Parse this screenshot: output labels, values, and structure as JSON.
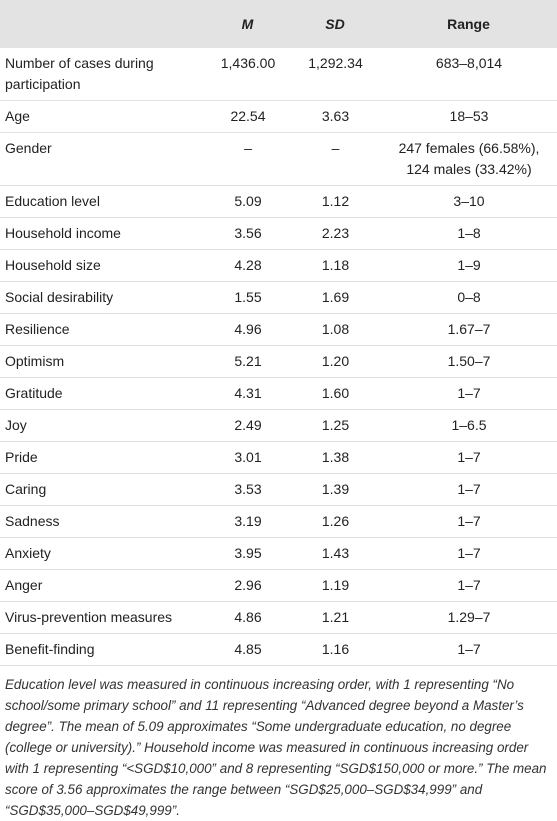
{
  "table": {
    "header": [
      "",
      "M",
      "SD",
      "Range"
    ],
    "rows": [
      [
        "Number of cases during participation",
        "1,436.00",
        "1,292.34",
        "683–8,014"
      ],
      [
        "Age",
        "22.54",
        "3.63",
        "18–53"
      ],
      [
        "Gender",
        "–",
        "–",
        "247 females (66.58%), 124 males (33.42%)"
      ],
      [
        "Education level",
        "5.09",
        "1.12",
        "3–10"
      ],
      [
        "Household income",
        "3.56",
        "2.23",
        "1–8"
      ],
      [
        "Household size",
        "4.28",
        "1.18",
        "1–9"
      ],
      [
        "Social desirability",
        "1.55",
        "1.69",
        "0–8"
      ],
      [
        "Resilience",
        "4.96",
        "1.08",
        "1.67–7"
      ],
      [
        "Optimism",
        "5.21",
        "1.20",
        "1.50–7"
      ],
      [
        "Gratitude",
        "4.31",
        "1.60",
        "1–7"
      ],
      [
        "Joy",
        "2.49",
        "1.25",
        "1–6.5"
      ],
      [
        "Pride",
        "3.01",
        "1.38",
        "1–7"
      ],
      [
        "Caring",
        "3.53",
        "1.39",
        "1–7"
      ],
      [
        "Sadness",
        "3.19",
        "1.26",
        "1–7"
      ],
      [
        "Anxiety",
        "3.95",
        "1.43",
        "1–7"
      ],
      [
        "Anger",
        "2.96",
        "1.19",
        "1–7"
      ],
      [
        "Virus-prevention measures",
        "4.86",
        "1.21",
        "1.29–7"
      ],
      [
        "Benefit-finding",
        "4.85",
        "1.16",
        "1–7"
      ]
    ],
    "note": "Education level was measured in continuous increasing order, with 1 representing “No school/some primary school” and 11 representing “Advanced degree beyond a Master’s degree”. The mean of 5.09 approximates “Some undergraduate education, no degree (college or university).” Household income was measured in continuous increasing order with 1 representing “<SGD$10,000” and 8 representing “SGD$150,000 or more.” The mean score of 3.56 approximates the range between “SGD$25,000–SGD$34,999” and “SGD$35,000–SGD$49,999”."
  }
}
